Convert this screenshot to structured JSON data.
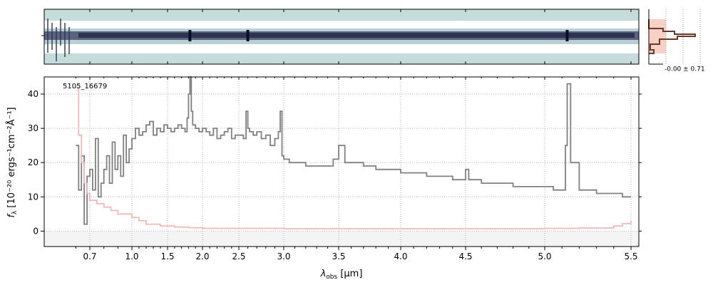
{
  "chart_data": [
    {
      "panel": "2d-spectrum",
      "type": "heatmap",
      "description_colors": {
        "background": "#c5dcdb",
        "trace": "#2e3350",
        "gap": "#ffffff"
      },
      "bright_rows_center": true,
      "features_um": [
        1.82,
        2.6,
        5.13
      ]
    },
    {
      "panel": "spatial-profile",
      "type": "line",
      "label": "-0.00 ± 0.71",
      "colors": {
        "profile": "#6b3b2a",
        "fill": "#f6c4b8"
      }
    },
    {
      "panel": "1d-spectrum",
      "type": "line",
      "annotation": "5105_16679",
      "xlabel_prefix": "λ",
      "xlabel_sub": "obs",
      "xlabel_suffix": " [μm]",
      "ylabel_main": "f",
      "ylabel_sub": "λ",
      "ylabel_units": "[10⁻²⁰ ergs⁻¹cm⁻²Å⁻¹]",
      "xticks": [
        "0.7",
        "1.0",
        "1.5",
        "2.0",
        "2.5",
        "3.0",
        "3.5",
        "4.0",
        "4.5",
        "5.0",
        "5.5"
      ],
      "xtick_values": [
        0.7,
        1.0,
        1.5,
        2.0,
        2.5,
        3.0,
        3.5,
        4.0,
        4.5,
        5.0,
        5.5
      ],
      "yticks": [
        "0",
        "10",
        "20",
        "30",
        "40"
      ],
      "ylim": [
        -4.5,
        45
      ],
      "grid": true,
      "series": [
        {
          "role": "flux",
          "color": "#808080",
          "x": [
            0.6,
            0.62,
            0.64,
            0.66,
            0.68,
            0.7,
            0.72,
            0.74,
            0.76,
            0.78,
            0.8,
            0.82,
            0.84,
            0.86,
            0.88,
            0.9,
            0.92,
            0.94,
            0.96,
            0.98,
            1.0,
            1.05,
            1.1,
            1.15,
            1.2,
            1.25,
            1.3,
            1.35,
            1.4,
            1.45,
            1.5,
            1.55,
            1.6,
            1.65,
            1.7,
            1.75,
            1.78,
            1.8,
            1.82,
            1.84,
            1.86,
            1.9,
            1.95,
            2.0,
            2.05,
            2.1,
            2.15,
            2.2,
            2.25,
            2.3,
            2.35,
            2.4,
            2.45,
            2.5,
            2.55,
            2.58,
            2.6,
            2.62,
            2.66,
            2.7,
            2.75,
            2.8,
            2.85,
            2.9,
            2.94,
            2.96,
            2.98,
            3.0,
            3.05,
            3.1,
            3.2,
            3.3,
            3.4,
            3.45,
            3.5,
            3.55,
            3.6,
            3.7,
            3.8,
            3.9,
            4.0,
            4.1,
            4.2,
            4.3,
            4.4,
            4.48,
            4.5,
            4.52,
            4.6,
            4.7,
            4.8,
            4.9,
            5.0,
            5.05,
            5.1,
            5.12,
            5.13,
            5.15,
            5.2,
            5.3,
            5.4,
            5.45,
            5.5
          ],
          "values": [
            25,
            12,
            22,
            2,
            16,
            18,
            12,
            27,
            10,
            14,
            18,
            22,
            14,
            26,
            18,
            22,
            16,
            28,
            20,
            24,
            27,
            30,
            28,
            29,
            31,
            32,
            28,
            30,
            29,
            31,
            30,
            29,
            30,
            31,
            30,
            29,
            33,
            40,
            45,
            35,
            31,
            30,
            29,
            30,
            29,
            28,
            30,
            27,
            28,
            29,
            30,
            27,
            28,
            28,
            27,
            35,
            30,
            29,
            28,
            29,
            27,
            28,
            25,
            27,
            29,
            35,
            22,
            21,
            20,
            20,
            19,
            19,
            19,
            21,
            25,
            20,
            20,
            19,
            18,
            18,
            17,
            17,
            16,
            16,
            15,
            15,
            18,
            15,
            14,
            14,
            13,
            13,
            13,
            12,
            12,
            25,
            43,
            20,
            12,
            11,
            11,
            10,
            10
          ]
        },
        {
          "role": "uncertainty",
          "color": "#f5b8b8",
          "x": [
            0.6,
            0.62,
            0.64,
            0.66,
            0.68,
            0.7,
            0.75,
            0.8,
            0.85,
            0.9,
            1.0,
            1.1,
            1.2,
            1.4,
            1.6,
            1.8,
            2.0,
            2.5,
            3.0,
            3.5,
            4.0,
            4.5,
            5.0,
            5.2,
            5.4,
            5.45,
            5.5
          ],
          "values": [
            42,
            28,
            20,
            14,
            11,
            9,
            8,
            7,
            6,
            5,
            4,
            3,
            2,
            1.5,
            1.2,
            1,
            0.8,
            0.8,
            0.7,
            0.7,
            0.7,
            0.7,
            0.8,
            0.9,
            1.5,
            2.2,
            3
          ]
        }
      ]
    }
  ]
}
